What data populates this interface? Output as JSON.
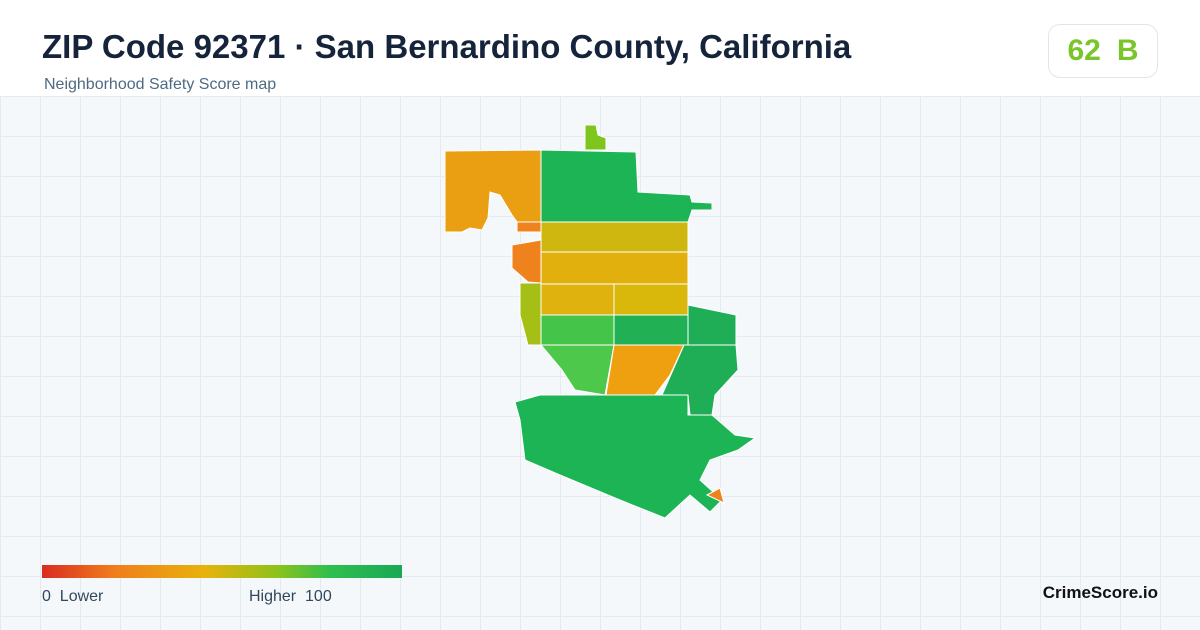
{
  "header": {
    "title": "ZIP Code 92371 · San Bernardino County, California",
    "subtitle": "Neighborhood Safety Score map"
  },
  "score": {
    "value": 62,
    "grade": "B"
  },
  "legend": {
    "min": 0,
    "min_label": "Lower",
    "max_label": "Higher",
    "max": 100
  },
  "brand": "CrimeScore.io"
}
